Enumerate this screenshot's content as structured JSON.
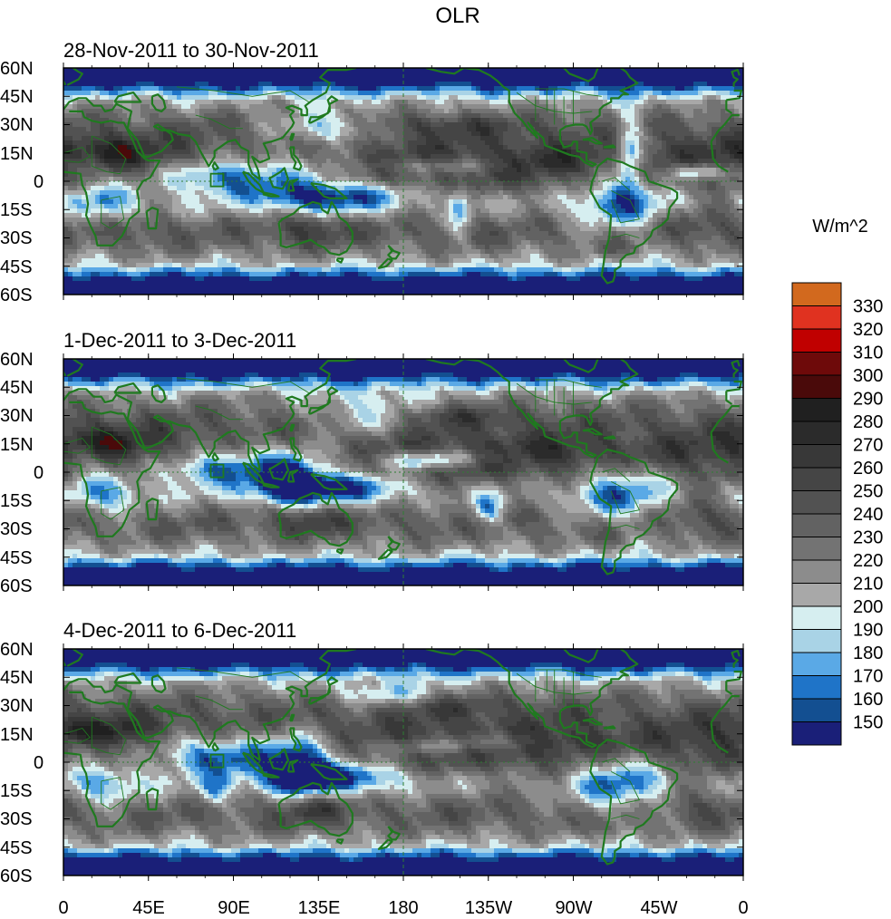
{
  "chart_data": {
    "type": "heatmap",
    "title": "OLR",
    "units": "W/m^2",
    "projection": "cylindrical-equidistant",
    "panels": [
      {
        "subtitle": "28-Nov-2011 to 30-Nov-2011"
      },
      {
        "subtitle": "1-Dec-2011 to 3-Dec-2011"
      },
      {
        "subtitle": "4-Dec-2011 to 6-Dec-2011"
      }
    ],
    "lat_range": [
      -60,
      60
    ],
    "lon_range": [
      0,
      360
    ],
    "y_tick_labels": [
      "60N",
      "45N",
      "30N",
      "15N",
      "0",
      "15S",
      "30S",
      "45S",
      "60S"
    ],
    "x_tick_labels": [
      "0",
      "45E",
      "90E",
      "135E",
      "180",
      "135W",
      "90W",
      "45W",
      "0"
    ],
    "colorbar": {
      "levels": [
        150,
        160,
        170,
        180,
        190,
        200,
        210,
        220,
        230,
        240,
        250,
        260,
        270,
        280,
        290,
        300,
        310,
        320,
        330
      ],
      "colors": [
        "#1a1f78",
        "#134f91",
        "#1f74c8",
        "#5aa9e6",
        "#a9d3e6",
        "#d6eef0",
        "#a8a8a8",
        "#8c8c8c",
        "#737373",
        "#626262",
        "#525252",
        "#454545",
        "#383838",
        "#2b2b2b",
        "#202020",
        "#4a0a0a",
        "#6e0a0a",
        "#c00000",
        "#e03220",
        "#d2691e"
      ]
    },
    "colors": {
      "coast": "#1f7a1f",
      "equator": "#2e7d32"
    }
  }
}
